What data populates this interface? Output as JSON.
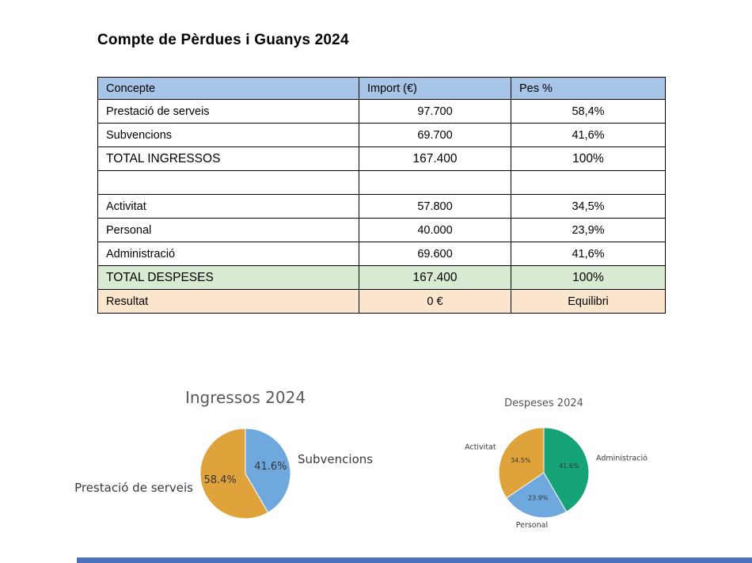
{
  "page": {
    "title": "Compte de Pèrdues i Guanys 2024"
  },
  "colors": {
    "header_bg": "#a8c5e8",
    "total_despeses_bg": "#d9ead3",
    "resultat_bg": "#fce5cd",
    "bottom_strip": "#4a72b8",
    "pie_orange": "#e0a33c",
    "pie_blue": "#6fa8dc",
    "pie_green": "#16a378",
    "chart_title_gray": "#595959",
    "table_border": "#000000"
  },
  "chart_data": [
    {
      "type": "table",
      "headers": [
        "Concepte",
        "Import (€)",
        "Pes %"
      ],
      "rows": [
        {
          "cells": [
            "Prestació de serveis",
            "97.700",
            "58,4%"
          ],
          "variant": "normal"
        },
        {
          "cells": [
            "Subvencions",
            "69.700",
            "41,6%"
          ],
          "variant": "normal"
        },
        {
          "cells": [
            "TOTAL INGRESSOS",
            "167.400",
            "100%"
          ],
          "variant": "total"
        },
        {
          "cells": [
            "",
            "",
            ""
          ],
          "variant": "empty"
        },
        {
          "cells": [
            "Activitat",
            "57.800",
            "34,5%"
          ],
          "variant": "normal"
        },
        {
          "cells": [
            "Personal",
            "40.000",
            "23,9%"
          ],
          "variant": "normal"
        },
        {
          "cells": [
            "Administració",
            "69.600",
            "41,6%"
          ],
          "variant": "normal"
        },
        {
          "cells": [
            "TOTAL DESPESES",
            "167.400",
            "100%"
          ],
          "variant": "total-despeses"
        },
        {
          "cells": [
            "Resultat",
            "0 €",
            "Equilibri"
          ],
          "variant": "resultat"
        }
      ]
    },
    {
      "type": "pie",
      "title": "Ingressos 2024",
      "labels": [
        "Prestació de serveis",
        "Subvencions"
      ],
      "values": [
        58.4,
        41.6
      ],
      "pct_labels": [
        "58.4%",
        "41.6%"
      ],
      "colors": [
        "#e0a33c",
        "#6fa8dc"
      ],
      "start_angle": 90,
      "direction": "counterclockwise",
      "legend": "none"
    },
    {
      "type": "pie",
      "title": "Despeses 2024",
      "labels": [
        "Activitat",
        "Personal",
        "Administració"
      ],
      "values": [
        34.5,
        23.9,
        41.6
      ],
      "pct_labels": [
        "34.5%",
        "23.9%",
        "41.6%"
      ],
      "colors": [
        "#e0a33c",
        "#6fa8dc",
        "#16a378"
      ],
      "start_angle": 90,
      "direction": "counterclockwise",
      "legend": "none"
    }
  ]
}
